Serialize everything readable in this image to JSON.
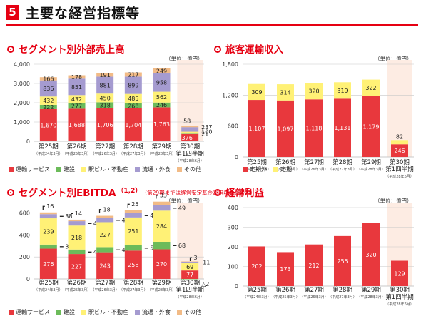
{
  "header": {
    "badge": "5",
    "title": "主要な経営指標等"
  },
  "colors": {
    "transport": "#e8383d",
    "construction": "#6cbb5a",
    "station": "#fff176",
    "retail": "#a59bd0",
    "other": "#f2bb86",
    "interim_bg": "#fdece3",
    "grid": "#c8c8c8",
    "bar_red": "#e8383d",
    "bar_yellow": "#fff176"
  },
  "chart_data": [
    {
      "id": "segment-sales",
      "type": "bar",
      "stacked": true,
      "title": "セグメント別外部売上高",
      "unit": "（単位：億円）",
      "ylim": [
        0,
        4000
      ],
      "yticks": [
        "0",
        "1,000",
        "2,000",
        "3,000",
        "4,000"
      ],
      "ytick_values": [
        0,
        1000,
        2000,
        3000,
        4000
      ],
      "categories": [
        "第25期",
        "第26期",
        "第27期",
        "第28期",
        "第29期",
        "第30期\n第1四半期"
      ],
      "category_subs": [
        "（平成24年3月）",
        "（平成25年3月）",
        "（平成26年3月）",
        "（平成27年3月）",
        "（平成28年3月）",
        "（平成28年6月）"
      ],
      "series": [
        {
          "name": "運輸サービス",
          "values": [
            1670,
            1688,
            1706,
            1704,
            1763,
            376
          ],
          "labels": [
            "1,670",
            "1,688",
            "1,706",
            "1,704",
            "1,763",
            "376"
          ]
        },
        {
          "name": "建設",
          "values": [
            222,
            277,
            318,
            268,
            246,
            21
          ],
          "labels": [
            "222",
            "277",
            "318",
            "268",
            "246",
            "21"
          ]
        },
        {
          "name": "駅ビル・不動産",
          "values": [
            432,
            432,
            450,
            485,
            562,
            100
          ],
          "labels": [
            "432",
            "432",
            "450",
            "485",
            "562",
            "100"
          ]
        },
        {
          "name": "流通・外食",
          "values": [
            836,
            851,
            881,
            899,
            958,
            237
          ],
          "labels": [
            "836",
            "851",
            "881",
            "899",
            "958",
            "237"
          ]
        },
        {
          "name": "その他",
          "values": [
            166,
            178,
            191,
            217,
            249,
            58
          ],
          "labels": [
            "166",
            "178",
            "191",
            "217",
            "249",
            "58"
          ]
        }
      ],
      "legend": [
        "運輸サービス",
        "建設",
        "駅ビル・不動産",
        "流通・外食",
        "その他"
      ],
      "legend_position": "bottom"
    },
    {
      "id": "passenger-revenue",
      "type": "bar",
      "stacked": true,
      "title": "旅客運輸収入",
      "unit": "（単位：億円）",
      "ylim": [
        0,
        1800
      ],
      "yticks": [
        "0",
        "600",
        "1,200",
        "1,800"
      ],
      "ytick_values": [
        0,
        600,
        1200,
        1800
      ],
      "categories": [
        "第25期",
        "第26期",
        "第27期",
        "第28期",
        "第29期",
        "第30期\n第1四半期"
      ],
      "category_subs": [
        "（平成24年3月）",
        "（平成25年3月）",
        "（平成26年3月）",
        "（平成27年3月）",
        "（平成28年3月）",
        "（平成28年6月）"
      ],
      "series": [
        {
          "name": "定期外",
          "values": [
            1107,
            1097,
            1118,
            1131,
            1179,
            246
          ],
          "labels": [
            "1,107",
            "1,097",
            "1,118",
            "1,131",
            "1,179",
            "246"
          ]
        },
        {
          "name": "定期",
          "values": [
            309,
            314,
            320,
            319,
            322,
            82
          ],
          "labels": [
            "309",
            "314",
            "320",
            "319",
            "322",
            "82"
          ]
        }
      ],
      "legend": [
        "定期外",
        "定期"
      ],
      "legend_position": "bottom"
    },
    {
      "id": "segment-ebitda",
      "type": "bar",
      "stacked": true,
      "title": "セグメント別EBITDA",
      "title_sup": "（1,2）",
      "title_note": "（第29期までは経営安定基金運用収益を含む）",
      "unit": "（単位：億円）",
      "ylim": [
        -20,
        650
      ],
      "yticks": [
        "0",
        "200",
        "400",
        "600"
      ],
      "ytick_values": [
        0,
        200,
        400,
        600
      ],
      "categories": [
        "第25期",
        "第26期",
        "第27期",
        "第28期",
        "第29期",
        "第30期\n第1四半期"
      ],
      "category_subs": [
        "（平成24年3月）",
        "（平成25年3月）",
        "（平成26年3月）",
        "（平成27年3月）",
        "（平成28年3月）",
        "（平成28年6月）"
      ],
      "series": [
        {
          "name": "運輸サービス",
          "values": [
            276,
            227,
            243,
            258,
            270,
            77
          ],
          "labels": [
            "276",
            "227",
            "243",
            "258",
            "270",
            "77"
          ]
        },
        {
          "name": "建設",
          "values": [
            37,
            41,
            47,
            51,
            68,
            -2
          ],
          "labels": [
            "37",
            "41",
            "47",
            "51",
            "68",
            "△2"
          ]
        },
        {
          "name": "駅ビル・不動産",
          "values": [
            239,
            218,
            227,
            251,
            284,
            69
          ],
          "labels": [
            "239",
            "218",
            "227",
            "251",
            "284",
            "69"
          ]
        },
        {
          "name": "流通・外食",
          "values": [
            38,
            40,
            40,
            40,
            49,
            11
          ],
          "labels": [
            "38",
            "40",
            "40",
            "40",
            "49",
            "11"
          ]
        },
        {
          "name": "その他",
          "values": [
            16,
            14,
            18,
            25,
            33,
            3
          ],
          "labels": [
            "16",
            "14",
            "18",
            "25",
            "33",
            "3"
          ]
        }
      ],
      "legend": [
        "運輸サービス",
        "建設",
        "駅ビル・不動産",
        "流通・外食",
        "その他"
      ],
      "legend_position": "bottom"
    },
    {
      "id": "ordinary-income",
      "type": "bar",
      "stacked": false,
      "title": "経常利益",
      "unit": "（単位：億円）",
      "ylim": [
        0,
        400
      ],
      "yticks": [
        "0",
        "100",
        "200",
        "300",
        "400"
      ],
      "ytick_values": [
        0,
        100,
        200,
        300,
        400
      ],
      "categories": [
        "第25期",
        "第26期",
        "第27期",
        "第28期",
        "第29期",
        "第30期\n第1四半期"
      ],
      "category_subs": [
        "（平成24年3月）",
        "（平成25年3月）",
        "（平成26年3月）",
        "（平成27年3月）",
        "（平成28年3月）",
        "（平成28年6月）"
      ],
      "series": [
        {
          "name": "",
          "values": [
            202,
            173,
            212,
            255,
            320,
            129
          ],
          "labels": [
            "202",
            "173",
            "212",
            "255",
            "320",
            "129"
          ]
        }
      ]
    }
  ]
}
